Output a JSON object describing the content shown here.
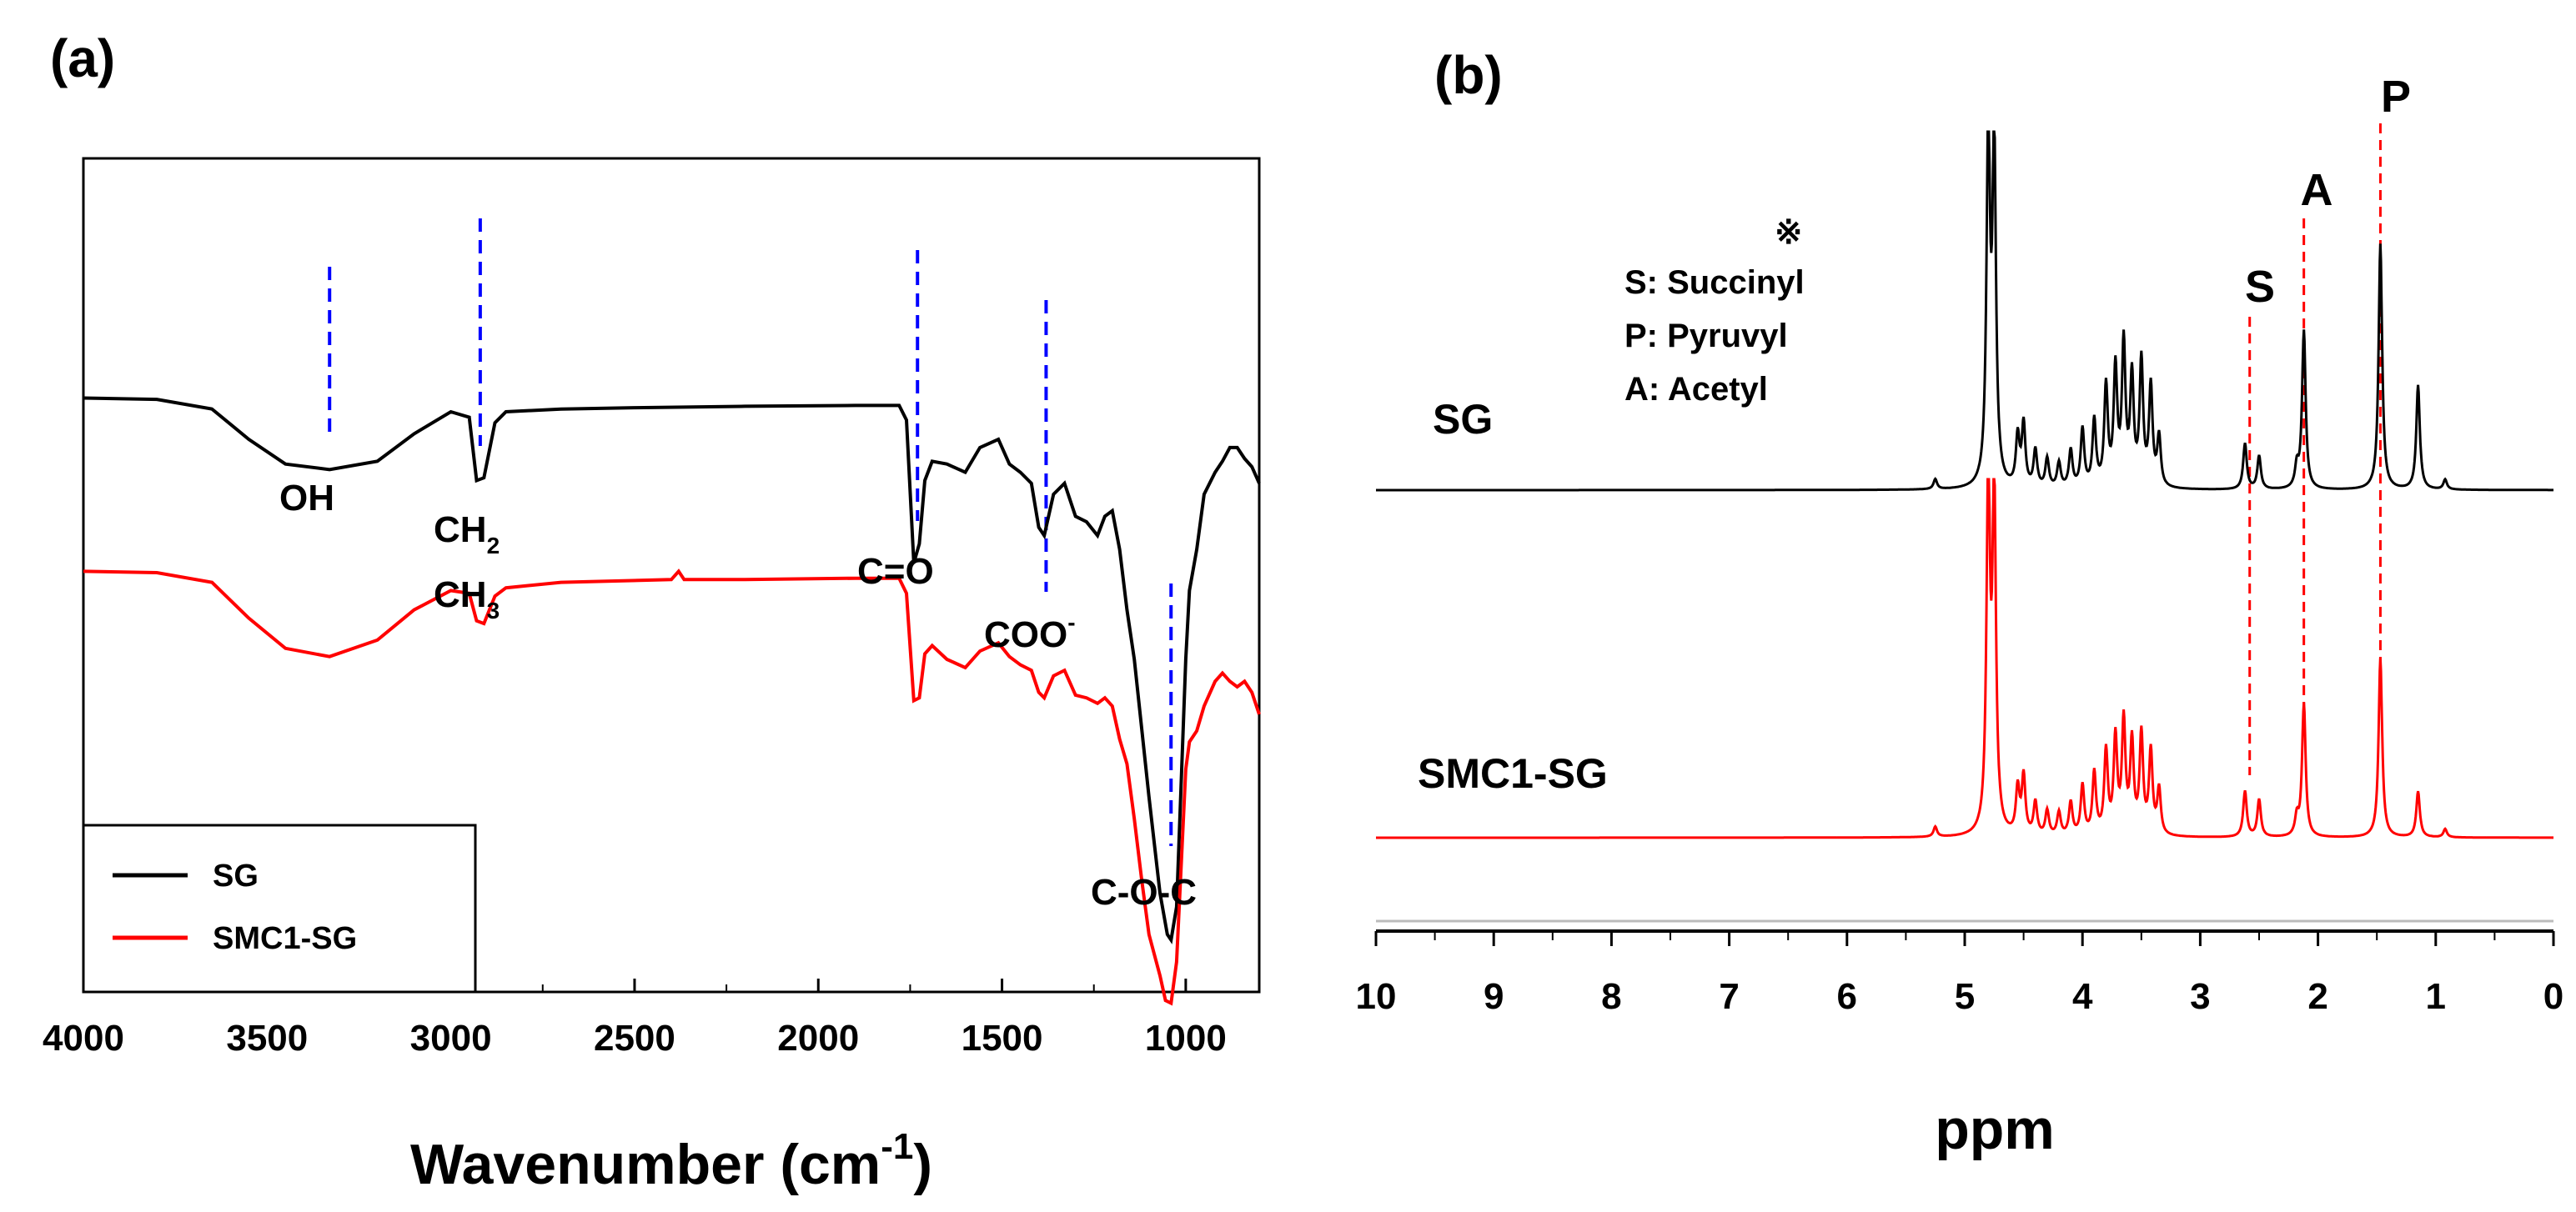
{
  "chart_data": [
    {
      "panel": "(a)",
      "type": "line",
      "xlabel": "Wavenumber (cm",
      "xlabel_sup": "-1",
      "xlabel_close": ")",
      "ylabel": "",
      "xlim": [
        4000,
        800
      ],
      "xticks": [
        "4000",
        "3500",
        "3000",
        "2500",
        "2000",
        "1500",
        "1000"
      ],
      "xtick_values": [
        4000,
        3500,
        3000,
        2500,
        2000,
        1500,
        1000
      ],
      "y_axis_labeled": false,
      "legend_position": "bottom-left",
      "series": [
        {
          "name": "SG",
          "color": "#000000",
          "points": [
            [
              4000,
              0.75
            ],
            [
              3800,
              0.755
            ],
            [
              3650,
              0.79
            ],
            [
              3550,
              0.9
            ],
            [
              3450,
              0.99
            ],
            [
              3330,
              1.01
            ],
            [
              3200,
              0.98
            ],
            [
              3100,
              0.88
            ],
            [
              3000,
              0.8
            ],
            [
              2950,
              0.82
            ],
            [
              2930,
              1.05
            ],
            [
              2910,
              1.04
            ],
            [
              2880,
              0.84
            ],
            [
              2850,
              0.8
            ],
            [
              2700,
              0.79
            ],
            [
              2500,
              0.785
            ],
            [
              2200,
              0.78
            ],
            [
              1900,
              0.777
            ],
            [
              1780,
              0.777
            ],
            [
              1760,
              0.83
            ],
            [
              1740,
              1.35
            ],
            [
              1725,
              1.28
            ],
            [
              1710,
              1.05
            ],
            [
              1690,
              0.98
            ],
            [
              1650,
              0.99
            ],
            [
              1600,
              1.02
            ],
            [
              1560,
              0.93
            ],
            [
              1510,
              0.9
            ],
            [
              1480,
              0.99
            ],
            [
              1450,
              1.02
            ],
            [
              1420,
              1.06
            ],
            [
              1400,
              1.22
            ],
            [
              1385,
              1.25
            ],
            [
              1360,
              1.1
            ],
            [
              1330,
              1.06
            ],
            [
              1300,
              1.18
            ],
            [
              1270,
              1.2
            ],
            [
              1240,
              1.25
            ],
            [
              1220,
              1.18
            ],
            [
              1200,
              1.16
            ],
            [
              1180,
              1.3
            ],
            [
              1160,
              1.52
            ],
            [
              1140,
              1.7
            ],
            [
              1120,
              1.95
            ],
            [
              1100,
              2.2
            ],
            [
              1070,
              2.55
            ],
            [
              1050,
              2.7
            ],
            [
              1040,
              2.72
            ],
            [
              1025,
              2.6
            ],
            [
              1000,
              1.7
            ],
            [
              990,
              1.45
            ],
            [
              970,
              1.3
            ],
            [
              950,
              1.1
            ],
            [
              920,
              1.02
            ],
            [
              900,
              0.98
            ],
            [
              880,
              0.93
            ],
            [
              860,
              0.93
            ],
            [
              840,
              0.97
            ],
            [
              820,
              1.0
            ],
            [
              800,
              1.06
            ]
          ]
        },
        {
          "name": "SMC1-SG",
          "color": "#ff0000",
          "points": [
            [
              4000,
              1.38
            ],
            [
              3800,
              1.385
            ],
            [
              3650,
              1.42
            ],
            [
              3550,
              1.55
            ],
            [
              3450,
              1.66
            ],
            [
              3330,
              1.69
            ],
            [
              3200,
              1.63
            ],
            [
              3100,
              1.52
            ],
            [
              3000,
              1.45
            ],
            [
              2950,
              1.46
            ],
            [
              2930,
              1.56
            ],
            [
              2910,
              1.57
            ],
            [
              2880,
              1.47
            ],
            [
              2850,
              1.44
            ],
            [
              2700,
              1.42
            ],
            [
              2400,
              1.41
            ],
            [
              2380,
              1.38
            ],
            [
              2365,
              1.41
            ],
            [
              2200,
              1.41
            ],
            [
              1900,
              1.405
            ],
            [
              1780,
              1.405
            ],
            [
              1760,
              1.46
            ],
            [
              1740,
              1.85
            ],
            [
              1725,
              1.84
            ],
            [
              1710,
              1.68
            ],
            [
              1690,
              1.65
            ],
            [
              1650,
              1.7
            ],
            [
              1600,
              1.73
            ],
            [
              1560,
              1.67
            ],
            [
              1510,
              1.64
            ],
            [
              1480,
              1.69
            ],
            [
              1450,
              1.72
            ],
            [
              1420,
              1.74
            ],
            [
              1400,
              1.82
            ],
            [
              1385,
              1.84
            ],
            [
              1360,
              1.76
            ],
            [
              1330,
              1.74
            ],
            [
              1300,
              1.83
            ],
            [
              1270,
              1.84
            ],
            [
              1240,
              1.86
            ],
            [
              1220,
              1.84
            ],
            [
              1200,
              1.87
            ],
            [
              1180,
              1.99
            ],
            [
              1160,
              2.08
            ],
            [
              1140,
              2.28
            ],
            [
              1120,
              2.5
            ],
            [
              1100,
              2.7
            ],
            [
              1070,
              2.85
            ],
            [
              1055,
              2.94
            ],
            [
              1040,
              2.95
            ],
            [
              1025,
              2.8
            ],
            [
              1000,
              2.1
            ],
            [
              990,
              2.0
            ],
            [
              970,
              1.96
            ],
            [
              950,
              1.87
            ],
            [
              920,
              1.78
            ],
            [
              900,
              1.75
            ],
            [
              880,
              1.78
            ],
            [
              860,
              1.8
            ],
            [
              840,
              1.78
            ],
            [
              820,
              1.82
            ],
            [
              800,
              1.9
            ]
          ]
        }
      ],
      "markers": [
        {
          "x": 3330,
          "label": "OH"
        },
        {
          "x": 2920,
          "label": "CH",
          "sub": "2",
          "label2": "CH",
          "sub2": "3"
        },
        {
          "x": 1730,
          "label": "C=O"
        },
        {
          "x": 1380,
          "label": "COO",
          "sup": "-"
        },
        {
          "x": 1040,
          "label": "C-O-C"
        }
      ]
    },
    {
      "panel": "(b)",
      "type": "line",
      "xlabel": "ppm",
      "ylabel": "",
      "xlim": [
        10,
        0
      ],
      "xticks": [
        "10",
        "9",
        "8",
        "7",
        "6",
        "5",
        "4",
        "3",
        "2",
        "1",
        "0"
      ],
      "xtick_values": [
        10,
        9,
        8,
        7,
        6,
        5,
        4,
        3,
        2,
        1,
        0
      ],
      "y_axis_labeled": false,
      "note_symbol": "※",
      "note_lines": [
        "S: Succinyl",
        "P: Pyruvyl",
        "A: Acetyl"
      ],
      "series": [
        {
          "name": "SG",
          "color": "#000000",
          "peaks": [
            [
              5.25,
              12
            ],
            [
              4.8,
              420
            ],
            [
              4.75,
              410
            ],
            [
              4.55,
              60
            ],
            [
              4.5,
              75
            ],
            [
              4.4,
              45
            ],
            [
              4.3,
              35
            ],
            [
              4.2,
              30
            ],
            [
              4.1,
              45
            ],
            [
              4.0,
              70
            ],
            [
              3.9,
              80
            ],
            [
              3.8,
              120
            ],
            [
              3.72,
              140
            ],
            [
              3.65,
              170
            ],
            [
              3.58,
              130
            ],
            [
              3.5,
              150
            ],
            [
              3.42,
              120
            ],
            [
              3.35,
              60
            ],
            [
              2.62,
              55
            ],
            [
              2.5,
              40
            ],
            [
              2.18,
              25
            ],
            [
              2.12,
              190
            ],
            [
              1.47,
              295
            ],
            [
              1.15,
              125
            ],
            [
              0.92,
              12
            ]
          ]
        },
        {
          "name": "SMC1-SG",
          "color": "#ff0000",
          "peaks": [
            [
              5.25,
              12
            ],
            [
              4.8,
              420
            ],
            [
              4.75,
              410
            ],
            [
              4.55,
              55
            ],
            [
              4.5,
              70
            ],
            [
              4.4,
              40
            ],
            [
              4.3,
              30
            ],
            [
              4.2,
              28
            ],
            [
              4.1,
              40
            ],
            [
              4.0,
              60
            ],
            [
              3.9,
              75
            ],
            [
              3.8,
              100
            ],
            [
              3.72,
              115
            ],
            [
              3.65,
              135
            ],
            [
              3.58,
              110
            ],
            [
              3.5,
              120
            ],
            [
              3.42,
              100
            ],
            [
              3.35,
              55
            ],
            [
              2.62,
              55
            ],
            [
              2.5,
              45
            ],
            [
              2.18,
              22
            ],
            [
              2.12,
              160
            ],
            [
              1.47,
              215
            ],
            [
              1.15,
              55
            ],
            [
              0.92,
              10
            ]
          ]
        }
      ],
      "markers": [
        {
          "x": 2.58,
          "label": "S"
        },
        {
          "x": 2.12,
          "label": "A"
        },
        {
          "x": 1.47,
          "label": "P"
        }
      ]
    }
  ]
}
